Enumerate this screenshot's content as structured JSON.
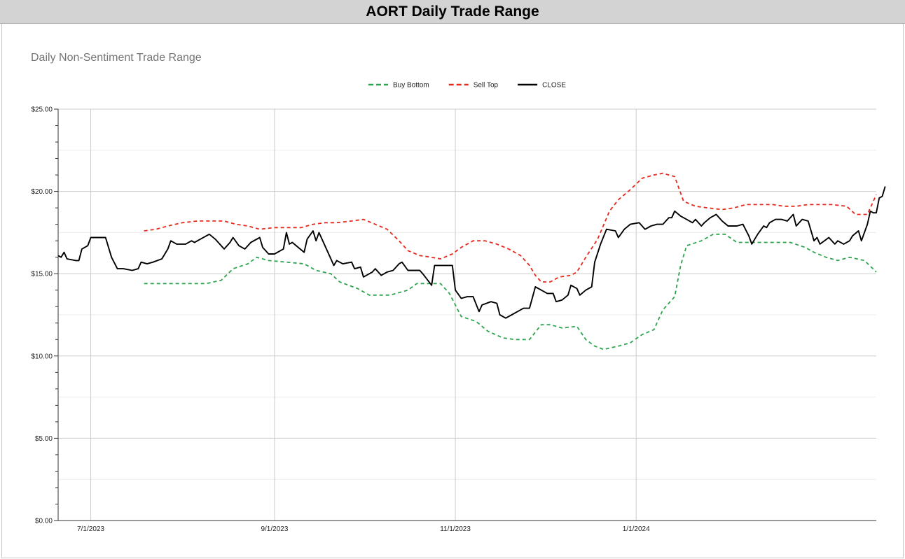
{
  "page": {
    "title": "AORT Daily Trade Range"
  },
  "chart_data": {
    "type": "line",
    "title": "Daily Non-Sentiment Trade Range",
    "xlabel": "",
    "ylabel": "",
    "ylim": [
      0,
      25
    ],
    "y_ticks": [
      0,
      5,
      10,
      15,
      20,
      25
    ],
    "y_tick_labels": [
      "$0.00",
      "$5.00",
      "$10.00",
      "$15.00",
      "$20.00",
      "$25.00"
    ],
    "x_range": [
      "2023-06-20",
      "2024-03-22"
    ],
    "x_ticks": [
      "2023-07-01",
      "2023-09-01",
      "2023-11-01",
      "2024-01-01"
    ],
    "x_tick_labels": [
      "7/1/2023",
      "9/1/2023",
      "11/1/2023",
      "1/1/2024"
    ],
    "grid": true,
    "legend_position": "top-center",
    "series": [
      {
        "name": "Buy Bottom",
        "color": "#2ea44f",
        "dash": "dashed",
        "points": [
          [
            "2023-07-19",
            14.4
          ],
          [
            "2023-07-26",
            14.4
          ],
          [
            "2023-08-02",
            14.4
          ],
          [
            "2023-08-09",
            14.4
          ],
          [
            "2023-08-14",
            14.6
          ],
          [
            "2023-08-18",
            15.3
          ],
          [
            "2023-08-23",
            15.6
          ],
          [
            "2023-08-26",
            16.0
          ],
          [
            "2023-08-30",
            15.8
          ],
          [
            "2023-09-05",
            15.7
          ],
          [
            "2023-09-11",
            15.6
          ],
          [
            "2023-09-15",
            15.2
          ],
          [
            "2023-09-20",
            15.0
          ],
          [
            "2023-09-23",
            14.5
          ],
          [
            "2023-09-29",
            14.1
          ],
          [
            "2023-10-03",
            13.7
          ],
          [
            "2023-10-10",
            13.7
          ],
          [
            "2023-10-16",
            14.0
          ],
          [
            "2023-10-19",
            14.4
          ],
          [
            "2023-10-27",
            14.4
          ],
          [
            "2023-10-30",
            13.8
          ],
          [
            "2023-11-03",
            12.4
          ],
          [
            "2023-11-08",
            12.1
          ],
          [
            "2023-11-12",
            11.5
          ],
          [
            "2023-11-17",
            11.1
          ],
          [
            "2023-11-21",
            11.0
          ],
          [
            "2023-11-26",
            11.0
          ],
          [
            "2023-11-30",
            11.9
          ],
          [
            "2023-12-03",
            11.9
          ],
          [
            "2023-12-07",
            11.7
          ],
          [
            "2023-12-12",
            11.8
          ],
          [
            "2023-12-15",
            11.0
          ],
          [
            "2023-12-18",
            10.6
          ],
          [
            "2023-12-21",
            10.4
          ],
          [
            "2023-12-26",
            10.6
          ],
          [
            "2023-12-30",
            10.8
          ],
          [
            "2024-01-03",
            11.3
          ],
          [
            "2024-01-07",
            11.6
          ],
          [
            "2024-01-10",
            12.8
          ],
          [
            "2024-01-14",
            13.6
          ],
          [
            "2024-01-16",
            15.5
          ],
          [
            "2024-01-18",
            16.7
          ],
          [
            "2024-01-23",
            17.0
          ],
          [
            "2024-01-27",
            17.4
          ],
          [
            "2024-01-31",
            17.4
          ],
          [
            "2024-02-04",
            16.9
          ],
          [
            "2024-02-10",
            16.9
          ],
          [
            "2024-02-16",
            16.9
          ],
          [
            "2024-02-22",
            16.9
          ],
          [
            "2024-02-27",
            16.6
          ],
          [
            "2024-03-01",
            16.3
          ],
          [
            "2024-03-05",
            16.0
          ],
          [
            "2024-03-09",
            15.8
          ],
          [
            "2024-03-13",
            16.0
          ],
          [
            "2024-03-18",
            15.8
          ],
          [
            "2024-03-22",
            15.1
          ]
        ]
      },
      {
        "name": "Sell Top",
        "color": "#e8281c",
        "dash": "dashed",
        "points": [
          [
            "2023-07-19",
            17.6
          ],
          [
            "2023-07-23",
            17.7
          ],
          [
            "2023-07-27",
            17.9
          ],
          [
            "2023-08-01",
            18.1
          ],
          [
            "2023-08-06",
            18.2
          ],
          [
            "2023-08-11",
            18.2
          ],
          [
            "2023-08-15",
            18.2
          ],
          [
            "2023-08-19",
            18.0
          ],
          [
            "2023-08-23",
            17.9
          ],
          [
            "2023-08-27",
            17.7
          ],
          [
            "2023-09-01",
            17.8
          ],
          [
            "2023-09-06",
            17.8
          ],
          [
            "2023-09-10",
            17.8
          ],
          [
            "2023-09-14",
            18.0
          ],
          [
            "2023-09-18",
            18.1
          ],
          [
            "2023-09-22",
            18.1
          ],
          [
            "2023-09-27",
            18.2
          ],
          [
            "2023-10-01",
            18.3
          ],
          [
            "2023-10-05",
            18.0
          ],
          [
            "2023-10-09",
            17.7
          ],
          [
            "2023-10-13",
            17.0
          ],
          [
            "2023-10-16",
            16.4
          ],
          [
            "2023-10-20",
            16.1
          ],
          [
            "2023-10-24",
            16.0
          ],
          [
            "2023-10-27",
            15.9
          ],
          [
            "2023-10-31",
            16.2
          ],
          [
            "2023-11-03",
            16.6
          ],
          [
            "2023-11-07",
            17.0
          ],
          [
            "2023-11-11",
            17.0
          ],
          [
            "2023-11-15",
            16.8
          ],
          [
            "2023-11-19",
            16.5
          ],
          [
            "2023-11-23",
            16.1
          ],
          [
            "2023-11-26",
            15.5
          ],
          [
            "2023-11-28",
            14.9
          ],
          [
            "2023-11-30",
            14.5
          ],
          [
            "2023-12-03",
            14.5
          ],
          [
            "2023-12-06",
            14.8
          ],
          [
            "2023-12-10",
            14.9
          ],
          [
            "2023-12-12",
            15.1
          ],
          [
            "2023-12-15",
            16.0
          ],
          [
            "2023-12-19",
            17.1
          ],
          [
            "2023-12-23",
            18.8
          ],
          [
            "2023-12-26",
            19.5
          ],
          [
            "2023-12-30",
            20.1
          ],
          [
            "2024-01-03",
            20.8
          ],
          [
            "2024-01-07",
            21.0
          ],
          [
            "2024-01-10",
            21.1
          ],
          [
            "2024-01-14",
            20.9
          ],
          [
            "2024-01-17",
            19.4
          ],
          [
            "2024-01-21",
            19.1
          ],
          [
            "2024-01-25",
            19.0
          ],
          [
            "2024-01-30",
            18.9
          ],
          [
            "2024-02-03",
            19.0
          ],
          [
            "2024-02-07",
            19.2
          ],
          [
            "2024-02-11",
            19.2
          ],
          [
            "2024-02-16",
            19.2
          ],
          [
            "2024-02-20",
            19.1
          ],
          [
            "2024-02-24",
            19.1
          ],
          [
            "2024-02-28",
            19.2
          ],
          [
            "2024-03-03",
            19.2
          ],
          [
            "2024-03-07",
            19.2
          ],
          [
            "2024-03-12",
            19.1
          ],
          [
            "2024-03-15",
            18.6
          ],
          [
            "2024-03-19",
            18.6
          ],
          [
            "2024-03-22",
            19.8
          ]
        ]
      },
      {
        "name": "CLOSE",
        "color": "#000000",
        "dash": "solid",
        "points": [
          [
            "2023-06-20",
            16.1
          ],
          [
            "2023-06-21",
            16.0
          ],
          [
            "2023-06-22",
            16.3
          ],
          [
            "2023-06-23",
            15.9
          ],
          [
            "2023-06-26",
            15.8
          ],
          [
            "2023-06-27",
            15.8
          ],
          [
            "2023-06-28",
            16.5
          ],
          [
            "2023-06-30",
            16.7
          ],
          [
            "2023-07-01",
            17.2
          ],
          [
            "2023-07-03",
            17.2
          ],
          [
            "2023-07-06",
            17.2
          ],
          [
            "2023-07-08",
            16.0
          ],
          [
            "2023-07-10",
            15.3
          ],
          [
            "2023-07-12",
            15.3
          ],
          [
            "2023-07-15",
            15.2
          ],
          [
            "2023-07-17",
            15.3
          ],
          [
            "2023-07-18",
            15.7
          ],
          [
            "2023-07-20",
            15.6
          ],
          [
            "2023-07-22",
            15.7
          ],
          [
            "2023-07-25",
            15.9
          ],
          [
            "2023-07-27",
            16.5
          ],
          [
            "2023-07-28",
            17.0
          ],
          [
            "2023-07-30",
            16.8
          ],
          [
            "2023-08-02",
            16.8
          ],
          [
            "2023-08-04",
            17.0
          ],
          [
            "2023-08-05",
            16.9
          ],
          [
            "2023-08-07",
            17.1
          ],
          [
            "2023-08-10",
            17.4
          ],
          [
            "2023-08-12",
            17.1
          ],
          [
            "2023-08-15",
            16.5
          ],
          [
            "2023-08-17",
            16.9
          ],
          [
            "2023-08-18",
            17.2
          ],
          [
            "2023-08-20",
            16.7
          ],
          [
            "2023-08-22",
            16.5
          ],
          [
            "2023-08-24",
            16.9
          ],
          [
            "2023-08-27",
            17.2
          ],
          [
            "2023-08-28",
            16.6
          ],
          [
            "2023-08-30",
            16.2
          ],
          [
            "2023-09-01",
            16.2
          ],
          [
            "2023-09-04",
            16.5
          ],
          [
            "2023-09-05",
            17.5
          ],
          [
            "2023-09-06",
            16.8
          ],
          [
            "2023-09-07",
            16.9
          ],
          [
            "2023-09-09",
            16.6
          ],
          [
            "2023-09-11",
            16.3
          ],
          [
            "2023-09-12",
            17.1
          ],
          [
            "2023-09-14",
            17.6
          ],
          [
            "2023-09-15",
            17.0
          ],
          [
            "2023-09-16",
            17.5
          ],
          [
            "2023-09-18",
            16.7
          ],
          [
            "2023-09-21",
            15.5
          ],
          [
            "2023-09-22",
            15.8
          ],
          [
            "2023-09-24",
            15.6
          ],
          [
            "2023-09-27",
            15.7
          ],
          [
            "2023-09-28",
            15.3
          ],
          [
            "2023-09-30",
            15.4
          ],
          [
            "2023-10-01",
            14.8
          ],
          [
            "2023-10-04",
            15.1
          ],
          [
            "2023-10-05",
            15.3
          ],
          [
            "2023-10-07",
            14.9
          ],
          [
            "2023-10-09",
            15.1
          ],
          [
            "2023-10-11",
            15.2
          ],
          [
            "2023-10-13",
            15.6
          ],
          [
            "2023-10-14",
            15.7
          ],
          [
            "2023-10-16",
            15.2
          ],
          [
            "2023-10-18",
            15.2
          ],
          [
            "2023-10-20",
            15.2
          ],
          [
            "2023-10-21",
            15.0
          ],
          [
            "2023-10-24",
            14.3
          ],
          [
            "2023-10-25",
            15.5
          ],
          [
            "2023-10-27",
            15.5
          ],
          [
            "2023-10-31",
            15.5
          ],
          [
            "2023-11-01",
            14.0
          ],
          [
            "2023-11-03",
            13.5
          ],
          [
            "2023-11-05",
            13.6
          ],
          [
            "2023-11-07",
            13.6
          ],
          [
            "2023-11-09",
            12.7
          ],
          [
            "2023-11-10",
            13.1
          ],
          [
            "2023-11-13",
            13.3
          ],
          [
            "2023-11-15",
            13.2
          ],
          [
            "2023-11-16",
            12.5
          ],
          [
            "2023-11-18",
            12.3
          ],
          [
            "2023-11-20",
            12.5
          ],
          [
            "2023-11-22",
            12.7
          ],
          [
            "2023-11-24",
            12.9
          ],
          [
            "2023-11-26",
            12.9
          ],
          [
            "2023-11-28",
            14.2
          ],
          [
            "2023-11-30",
            14.0
          ],
          [
            "2023-12-02",
            13.8
          ],
          [
            "2023-12-04",
            13.8
          ],
          [
            "2023-12-05",
            13.3
          ],
          [
            "2023-12-07",
            13.4
          ],
          [
            "2023-12-09",
            13.7
          ],
          [
            "2023-12-10",
            14.3
          ],
          [
            "2023-12-12",
            14.1
          ],
          [
            "2023-12-13",
            13.7
          ],
          [
            "2023-12-15",
            14.0
          ],
          [
            "2023-12-17",
            14.2
          ],
          [
            "2023-12-18",
            15.7
          ],
          [
            "2023-12-20",
            16.8
          ],
          [
            "2023-12-22",
            17.7
          ],
          [
            "2023-12-25",
            17.6
          ],
          [
            "2023-12-26",
            17.2
          ],
          [
            "2023-12-28",
            17.7
          ],
          [
            "2023-12-30",
            18.0
          ],
          [
            "2024-01-02",
            18.1
          ],
          [
            "2024-01-04",
            17.7
          ],
          [
            "2024-01-06",
            17.9
          ],
          [
            "2024-01-08",
            18.0
          ],
          [
            "2024-01-10",
            18.0
          ],
          [
            "2024-01-12",
            18.4
          ],
          [
            "2024-01-13",
            18.4
          ],
          [
            "2024-01-14",
            18.8
          ],
          [
            "2024-01-16",
            18.5
          ],
          [
            "2024-01-18",
            18.3
          ],
          [
            "2024-01-20",
            18.1
          ],
          [
            "2024-01-21",
            18.3
          ],
          [
            "2024-01-23",
            17.9
          ],
          [
            "2024-01-24",
            18.1
          ],
          [
            "2024-01-26",
            18.4
          ],
          [
            "2024-01-28",
            18.6
          ],
          [
            "2024-01-30",
            18.2
          ],
          [
            "2024-02-01",
            17.9
          ],
          [
            "2024-02-04",
            17.9
          ],
          [
            "2024-02-06",
            18.0
          ],
          [
            "2024-02-08",
            17.3
          ],
          [
            "2024-02-09",
            16.8
          ],
          [
            "2024-02-11",
            17.4
          ],
          [
            "2024-02-13",
            17.9
          ],
          [
            "2024-02-14",
            17.8
          ],
          [
            "2024-02-15",
            18.1
          ],
          [
            "2024-02-17",
            18.3
          ],
          [
            "2024-02-19",
            18.3
          ],
          [
            "2024-02-21",
            18.2
          ],
          [
            "2024-02-23",
            18.6
          ],
          [
            "2024-02-24",
            17.9
          ],
          [
            "2024-02-26",
            18.3
          ],
          [
            "2024-02-28",
            18.2
          ],
          [
            "2024-03-01",
            17.0
          ],
          [
            "2024-03-02",
            17.2
          ],
          [
            "2024-03-03",
            16.8
          ],
          [
            "2024-03-06",
            17.2
          ],
          [
            "2024-03-08",
            16.8
          ],
          [
            "2024-03-09",
            17.0
          ],
          [
            "2024-03-11",
            16.8
          ],
          [
            "2024-03-13",
            17.0
          ],
          [
            "2024-03-14",
            17.3
          ],
          [
            "2024-03-16",
            17.6
          ],
          [
            "2024-03-17",
            17.0
          ],
          [
            "2024-03-19",
            18.0
          ],
          [
            "2024-03-20",
            18.8
          ],
          [
            "2024-03-21",
            18.7
          ],
          [
            "2024-03-22",
            18.7
          ],
          [
            "2024-03-23",
            19.6
          ],
          [
            "2024-03-24",
            19.7
          ],
          [
            "2024-03-25",
            20.3
          ]
        ]
      }
    ]
  }
}
